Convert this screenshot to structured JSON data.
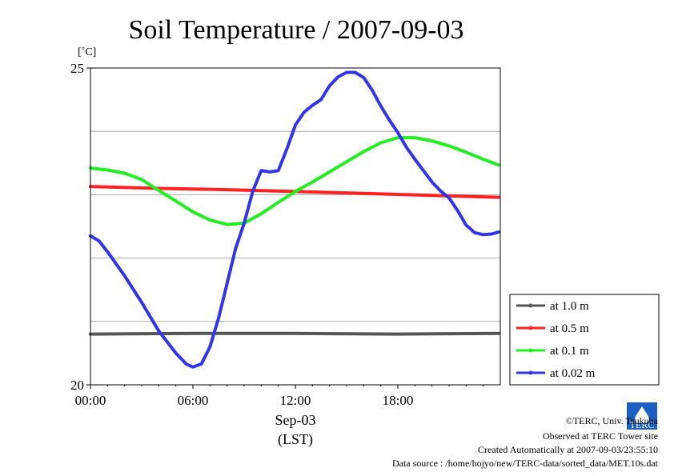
{
  "chart_data": {
    "type": "line",
    "title": "Soil Temperature / 2007-09-03",
    "ylabel": "[˚C]",
    "xlabel": "Sep-03",
    "xlabel2": "(LST)",
    "xlim": [
      0,
      24
    ],
    "ylim": [
      20,
      25
    ],
    "yticks": [
      "25",
      "20"
    ],
    "xticks": [
      {
        "h": 0,
        "label": "00:00"
      },
      {
        "h": 6,
        "label": "06:00"
      },
      {
        "h": 12,
        "label": "12:00"
      },
      {
        "h": 18,
        "label": "18:00"
      }
    ],
    "grid_y": [
      21,
      22,
      23,
      24
    ],
    "legend_position": "right",
    "series": [
      {
        "name": "at 1.0 m",
        "color": "#555555",
        "points": [
          [
            0,
            20.8
          ],
          [
            6,
            20.81
          ],
          [
            12,
            20.81
          ],
          [
            18,
            20.8
          ],
          [
            23.9,
            20.81
          ]
        ]
      },
      {
        "name": "at 0.5 m",
        "color": "#ff2020",
        "points": [
          [
            0,
            23.13
          ],
          [
            4,
            23.1
          ],
          [
            8,
            23.08
          ],
          [
            12,
            23.05
          ],
          [
            16,
            23.02
          ],
          [
            20,
            22.99
          ],
          [
            23.9,
            22.96
          ]
        ]
      },
      {
        "name": "at 0.1 m",
        "color": "#22ee22",
        "points": [
          [
            0,
            23.42
          ],
          [
            1,
            23.39
          ],
          [
            2,
            23.34
          ],
          [
            3,
            23.24
          ],
          [
            4,
            23.07
          ],
          [
            5,
            22.9
          ],
          [
            6,
            22.73
          ],
          [
            7,
            22.6
          ],
          [
            8,
            22.53
          ],
          [
            9,
            22.55
          ],
          [
            10,
            22.7
          ],
          [
            11,
            22.88
          ],
          [
            12,
            23.05
          ],
          [
            13,
            23.2
          ],
          [
            14,
            23.36
          ],
          [
            15,
            23.52
          ],
          [
            16,
            23.68
          ],
          [
            17,
            23.82
          ],
          [
            18,
            23.9
          ],
          [
            19,
            23.9
          ],
          [
            20,
            23.85
          ],
          [
            21,
            23.77
          ],
          [
            22,
            23.67
          ],
          [
            23,
            23.56
          ],
          [
            23.9,
            23.47
          ]
        ]
      },
      {
        "name": "at 0.02 m",
        "color": "#3333ee",
        "points": [
          [
            0,
            22.35
          ],
          [
            0.5,
            22.27
          ],
          [
            1,
            22.1
          ],
          [
            2,
            21.72
          ],
          [
            3,
            21.3
          ],
          [
            4,
            20.85
          ],
          [
            5,
            20.5
          ],
          [
            5.6,
            20.33
          ],
          [
            6,
            20.28
          ],
          [
            6.5,
            20.33
          ],
          [
            7,
            20.6
          ],
          [
            7.5,
            21.05
          ],
          [
            8,
            21.6
          ],
          [
            8.5,
            22.15
          ],
          [
            9,
            22.55
          ],
          [
            9.5,
            23.05
          ],
          [
            10,
            23.38
          ],
          [
            10.5,
            23.36
          ],
          [
            11,
            23.38
          ],
          [
            11.5,
            23.72
          ],
          [
            12,
            24.1
          ],
          [
            12.5,
            24.3
          ],
          [
            13,
            24.41
          ],
          [
            13.5,
            24.5
          ],
          [
            14,
            24.72
          ],
          [
            14.5,
            24.86
          ],
          [
            15,
            24.93
          ],
          [
            15.5,
            24.93
          ],
          [
            16,
            24.85
          ],
          [
            16.5,
            24.65
          ],
          [
            17,
            24.4
          ],
          [
            17.5,
            24.18
          ],
          [
            18,
            23.98
          ],
          [
            18.5,
            23.75
          ],
          [
            19,
            23.56
          ],
          [
            19.5,
            23.38
          ],
          [
            20,
            23.2
          ],
          [
            20.5,
            23.06
          ],
          [
            21,
            22.95
          ],
          [
            21.5,
            22.75
          ],
          [
            22,
            22.52
          ],
          [
            22.5,
            22.4
          ],
          [
            23,
            22.37
          ],
          [
            23.5,
            22.38
          ],
          [
            23.9,
            22.41
          ]
        ]
      }
    ]
  },
  "footer": {
    "line1": "©TERC, Univ. Tsukuba",
    "line2": "Observed at TERC Tower site",
    "line3": "Created Automatically at 2007-09-03/23:55:10",
    "line4": "Data source : /home/hojyo/new/TERC-data/sorted_data/MET.10s.dat",
    "logo_text": "TERC"
  }
}
